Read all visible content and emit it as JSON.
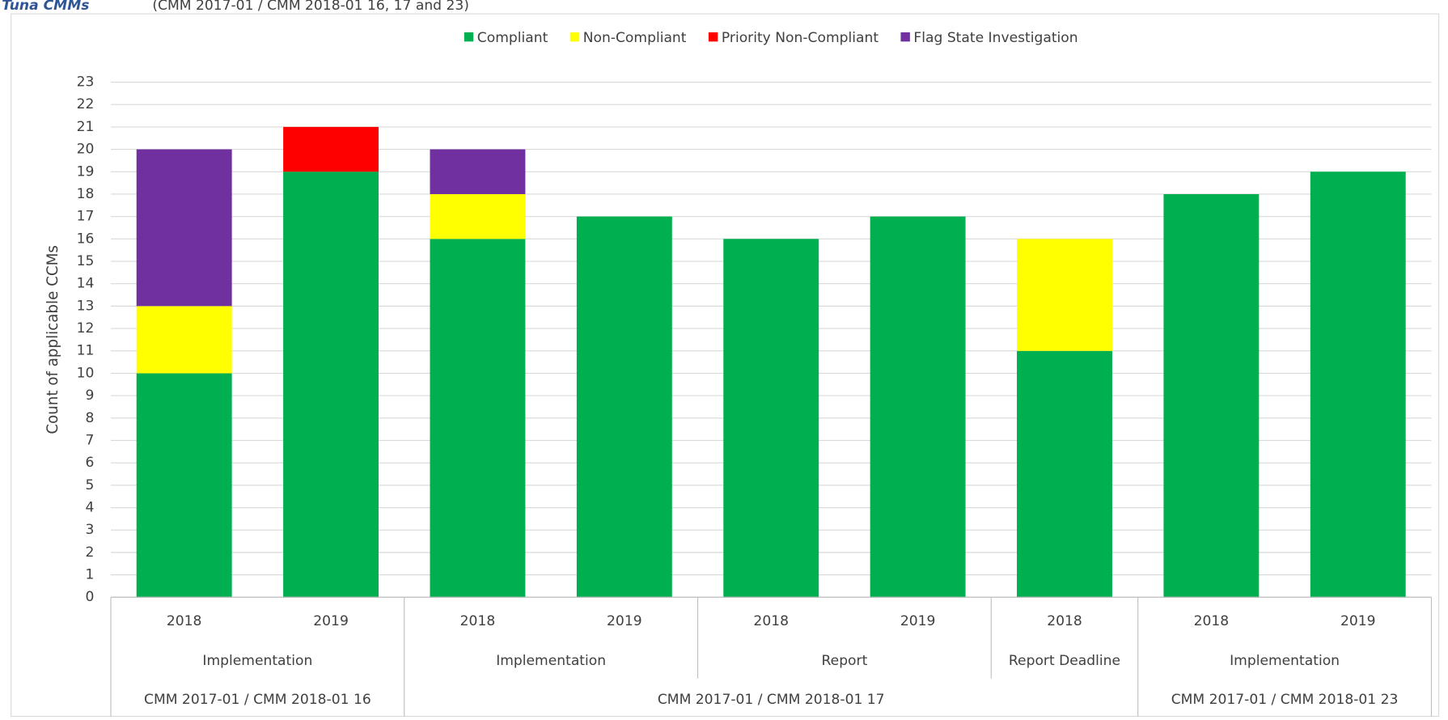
{
  "chart_data": {
    "type": "bar",
    "stacked": true,
    "title": "Tuna CMMs",
    "subtitle": "(CMM 2017-01 / CMM 2018-01 16, 17 and 23)",
    "y_label": "Count of applicable CCMs",
    "groups": [
      {
        "label": "CMM 2017-01 / CMM 2018-01 16",
        "subgroups": [
          {
            "label": "Implementation",
            "categories": [
              "2018",
              "2019"
            ]
          }
        ]
      },
      {
        "label": "CMM 2017-01 / CMM 2018-01 17",
        "subgroups": [
          {
            "label": "Implementation",
            "categories": [
              "2018",
              "2019"
            ]
          },
          {
            "label": "Report",
            "categories": [
              "2018",
              "2019"
            ]
          },
          {
            "label": "Report Deadline",
            "categories": [
              "2018"
            ]
          }
        ]
      },
      {
        "label": "CMM 2017-01 / CMM 2018-01 23",
        "subgroups": [
          {
            "label": "Implementation",
            "categories": [
              "2018",
              "2019"
            ]
          }
        ]
      }
    ],
    "series": [
      {
        "name": "Compliant",
        "color": "#00b050",
        "values": [
          10,
          19,
          16,
          17,
          16,
          17,
          11,
          18,
          19
        ]
      },
      {
        "name": "Non-Compliant",
        "color": "#ffff00",
        "values": [
          3,
          0,
          2,
          0,
          0,
          0,
          5,
          0,
          0
        ]
      },
      {
        "name": "Priority Non-Compliant",
        "color": "#ff0000",
        "values": [
          0,
          2,
          0,
          0,
          0,
          0,
          0,
          0,
          0
        ]
      },
      {
        "name": "Flag State Investigation",
        "color": "#7030a0",
        "values": [
          7,
          0,
          2,
          0,
          0,
          0,
          0,
          0,
          0
        ]
      }
    ],
    "ylim": [
      0,
      23
    ],
    "yticks": [
      0,
      1,
      2,
      3,
      4,
      5,
      6,
      7,
      8,
      9,
      10,
      11,
      12,
      13,
      14,
      15,
      16,
      17,
      18,
      19,
      20,
      21,
      22,
      23
    ],
    "grid": true,
    "legend": "top"
  }
}
